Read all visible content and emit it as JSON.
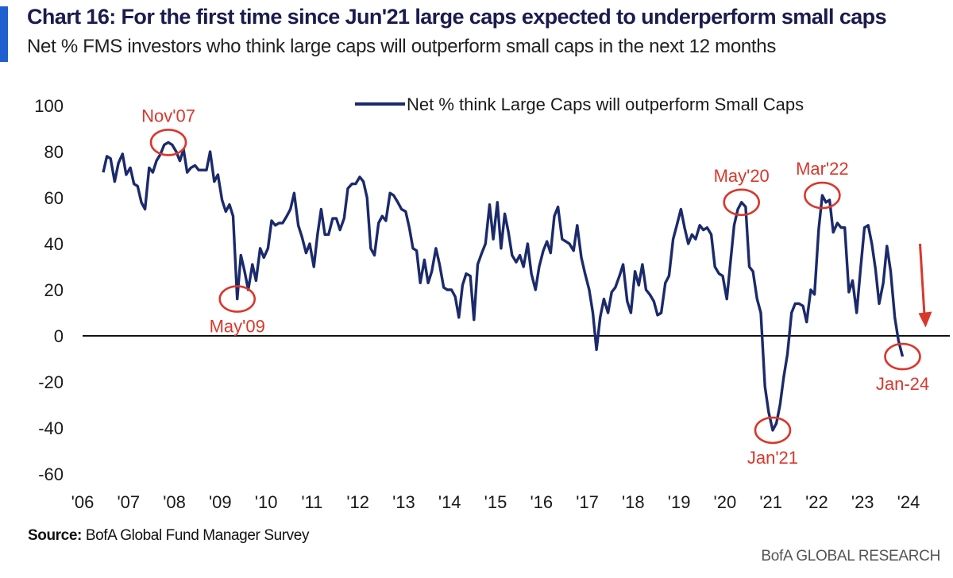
{
  "header": {
    "title": "Chart 16: For the first time since Jun'21 large caps expected to underperform small caps",
    "subtitle": "Net % FMS investors who think large caps will outperform small caps in the next 12 months"
  },
  "footer": {
    "source_label": "Source:",
    "source_text": "BofA Global Fund Manager Survey",
    "brand": "BofA GLOBAL RESEARCH"
  },
  "colors": {
    "line": "#1b2a6b",
    "annotation": "#d9372b",
    "accent": "#1f5fd0",
    "zero_line": "#111111"
  },
  "chart_data": {
    "type": "line",
    "title": "Chart 16: For the first time since Jun'21 large caps expected to underperform small caps",
    "subtitle": "Net % FMS investors who think large caps will outperform small caps in the next 12 months",
    "xlabel": "",
    "ylabel": "",
    "ylim": [
      -60,
      100
    ],
    "xlim": [
      2006.0,
      2024.9
    ],
    "yticks": [
      100,
      80,
      60,
      40,
      20,
      0,
      -20,
      -40,
      -60
    ],
    "xtick_values": [
      2006,
      2007,
      2008,
      2009,
      2010,
      2011,
      2012,
      2013,
      2014,
      2015,
      2016,
      2017,
      2018,
      2019,
      2020,
      2021,
      2022,
      2023,
      2024
    ],
    "xtick_labels": [
      "'06",
      "'07",
      "'08",
      "'09",
      "'10",
      "'11",
      "'12",
      "'13",
      "'14",
      "'15",
      "'16",
      "'17",
      "'18",
      "'19",
      "'20",
      "'21",
      "'22",
      "'23",
      "'24"
    ],
    "legend": {
      "position": "top-center",
      "entries": [
        "Net % think Large Caps will outperform Small Caps"
      ]
    },
    "grid": false,
    "series": [
      {
        "name": "Net % think Large Caps will outperform Small Caps",
        "points": [
          [
            2006.45,
            71
          ],
          [
            2006.53,
            78
          ],
          [
            2006.61,
            77
          ],
          [
            2006.7,
            67
          ],
          [
            2006.78,
            75
          ],
          [
            2006.87,
            79
          ],
          [
            2006.95,
            70
          ],
          [
            2007.04,
            73
          ],
          [
            2007.12,
            66
          ],
          [
            2007.2,
            65
          ],
          [
            2007.28,
            58
          ],
          [
            2007.36,
            55
          ],
          [
            2007.45,
            73
          ],
          [
            2007.53,
            71
          ],
          [
            2007.61,
            76
          ],
          [
            2007.7,
            79
          ],
          [
            2007.78,
            83
          ],
          [
            2007.87,
            84
          ],
          [
            2007.95,
            83
          ],
          [
            2008.04,
            80
          ],
          [
            2008.12,
            76
          ],
          [
            2008.2,
            81
          ],
          [
            2008.28,
            71
          ],
          [
            2008.36,
            73
          ],
          [
            2008.45,
            74
          ],
          [
            2008.53,
            72
          ],
          [
            2008.61,
            72
          ],
          [
            2008.7,
            72
          ],
          [
            2008.78,
            80
          ],
          [
            2008.87,
            67
          ],
          [
            2008.95,
            70
          ],
          [
            2009.04,
            59
          ],
          [
            2009.12,
            54
          ],
          [
            2009.2,
            57
          ],
          [
            2009.28,
            52
          ],
          [
            2009.37,
            16
          ],
          [
            2009.45,
            35
          ],
          [
            2009.53,
            28
          ],
          [
            2009.61,
            20
          ],
          [
            2009.7,
            31
          ],
          [
            2009.78,
            24
          ],
          [
            2009.87,
            38
          ],
          [
            2009.95,
            34
          ],
          [
            2010.04,
            38
          ],
          [
            2010.12,
            50
          ],
          [
            2010.2,
            48
          ],
          [
            2010.28,
            49
          ],
          [
            2010.36,
            49
          ],
          [
            2010.45,
            52
          ],
          [
            2010.53,
            55
          ],
          [
            2010.61,
            62
          ],
          [
            2010.7,
            48
          ],
          [
            2010.78,
            43
          ],
          [
            2010.87,
            36
          ],
          [
            2010.95,
            40
          ],
          [
            2011.04,
            30
          ],
          [
            2011.12,
            44
          ],
          [
            2011.2,
            55
          ],
          [
            2011.28,
            44
          ],
          [
            2011.36,
            44
          ],
          [
            2011.45,
            51
          ],
          [
            2011.53,
            51
          ],
          [
            2011.61,
            46
          ],
          [
            2011.7,
            51
          ],
          [
            2011.78,
            64
          ],
          [
            2011.87,
            66
          ],
          [
            2011.95,
            66
          ],
          [
            2012.04,
            69
          ],
          [
            2012.12,
            67
          ],
          [
            2012.2,
            60
          ],
          [
            2012.28,
            38
          ],
          [
            2012.36,
            35
          ],
          [
            2012.45,
            49
          ],
          [
            2012.53,
            52
          ],
          [
            2012.61,
            50
          ],
          [
            2012.7,
            62
          ],
          [
            2012.78,
            61
          ],
          [
            2012.87,
            58
          ],
          [
            2012.95,
            55
          ],
          [
            2013.04,
            54
          ],
          [
            2013.12,
            47
          ],
          [
            2013.2,
            38
          ],
          [
            2013.28,
            37
          ],
          [
            2013.36,
            23
          ],
          [
            2013.45,
            33
          ],
          [
            2013.53,
            23
          ],
          [
            2013.61,
            28
          ],
          [
            2013.7,
            38
          ],
          [
            2013.78,
            31
          ],
          [
            2013.87,
            21
          ],
          [
            2013.95,
            20
          ],
          [
            2014.04,
            20
          ],
          [
            2014.12,
            17
          ],
          [
            2014.2,
            8
          ],
          [
            2014.28,
            22
          ],
          [
            2014.36,
            27
          ],
          [
            2014.45,
            26
          ],
          [
            2014.53,
            7
          ],
          [
            2014.61,
            31
          ],
          [
            2014.7,
            36
          ],
          [
            2014.78,
            40
          ],
          [
            2014.87,
            57
          ],
          [
            2014.95,
            42
          ],
          [
            2015.04,
            58
          ],
          [
            2015.12,
            38
          ],
          [
            2015.2,
            53
          ],
          [
            2015.28,
            45
          ],
          [
            2015.36,
            35
          ],
          [
            2015.45,
            32
          ],
          [
            2015.53,
            35
          ],
          [
            2015.61,
            30
          ],
          [
            2015.7,
            40
          ],
          [
            2015.78,
            27
          ],
          [
            2015.87,
            20
          ],
          [
            2015.95,
            30
          ],
          [
            2016.04,
            37
          ],
          [
            2016.12,
            41
          ],
          [
            2016.2,
            36
          ],
          [
            2016.28,
            52
          ],
          [
            2016.36,
            56
          ],
          [
            2016.45,
            42
          ],
          [
            2016.53,
            41
          ],
          [
            2016.61,
            40
          ],
          [
            2016.7,
            37
          ],
          [
            2016.78,
            48
          ],
          [
            2016.87,
            34
          ],
          [
            2016.95,
            27
          ],
          [
            2017.04,
            20
          ],
          [
            2017.12,
            10
          ],
          [
            2017.2,
            -6
          ],
          [
            2017.28,
            8
          ],
          [
            2017.36,
            16
          ],
          [
            2017.45,
            10
          ],
          [
            2017.53,
            19
          ],
          [
            2017.61,
            21
          ],
          [
            2017.7,
            26
          ],
          [
            2017.78,
            31
          ],
          [
            2017.87,
            15
          ],
          [
            2017.95,
            10
          ],
          [
            2018.04,
            28
          ],
          [
            2018.12,
            22
          ],
          [
            2018.2,
            31
          ],
          [
            2018.28,
            20
          ],
          [
            2018.36,
            18
          ],
          [
            2018.45,
            15
          ],
          [
            2018.53,
            9
          ],
          [
            2018.61,
            10
          ],
          [
            2018.7,
            23
          ],
          [
            2018.78,
            26
          ],
          [
            2018.87,
            42
          ],
          [
            2018.95,
            48
          ],
          [
            2019.04,
            55
          ],
          [
            2019.12,
            47
          ],
          [
            2019.2,
            40
          ],
          [
            2019.28,
            44
          ],
          [
            2019.36,
            42
          ],
          [
            2019.45,
            48
          ],
          [
            2019.53,
            46
          ],
          [
            2019.61,
            47
          ],
          [
            2019.7,
            44
          ],
          [
            2019.78,
            30
          ],
          [
            2019.87,
            27
          ],
          [
            2019.95,
            26
          ],
          [
            2020.04,
            16
          ],
          [
            2020.12,
            32
          ],
          [
            2020.2,
            48
          ],
          [
            2020.28,
            55
          ],
          [
            2020.36,
            58
          ],
          [
            2020.45,
            56
          ],
          [
            2020.53,
            30
          ],
          [
            2020.61,
            28
          ],
          [
            2020.7,
            16
          ],
          [
            2020.78,
            10
          ],
          [
            2020.87,
            -22
          ],
          [
            2020.95,
            -33
          ],
          [
            2021.04,
            -41
          ],
          [
            2021.12,
            -38
          ],
          [
            2021.2,
            -30
          ],
          [
            2021.28,
            -18
          ],
          [
            2021.36,
            -8
          ],
          [
            2021.45,
            10
          ],
          [
            2021.53,
            14
          ],
          [
            2021.61,
            14
          ],
          [
            2021.7,
            13
          ],
          [
            2021.78,
            6
          ],
          [
            2021.87,
            20
          ],
          [
            2021.95,
            18
          ],
          [
            2022.04,
            46
          ],
          [
            2022.12,
            61
          ],
          [
            2022.2,
            58
          ],
          [
            2022.28,
            59
          ],
          [
            2022.36,
            45
          ],
          [
            2022.45,
            49
          ],
          [
            2022.53,
            47
          ],
          [
            2022.61,
            47
          ],
          [
            2022.7,
            19
          ],
          [
            2022.78,
            24
          ],
          [
            2022.87,
            10
          ],
          [
            2022.95,
            28
          ],
          [
            2023.04,
            47
          ],
          [
            2023.12,
            48
          ],
          [
            2023.2,
            40
          ],
          [
            2023.28,
            29
          ],
          [
            2023.36,
            14
          ],
          [
            2023.45,
            23
          ],
          [
            2023.53,
            39
          ],
          [
            2023.61,
            28
          ],
          [
            2023.7,
            8
          ],
          [
            2023.78,
            -2
          ],
          [
            2023.87,
            -9
          ]
        ]
      }
    ],
    "annotations": [
      {
        "label": "Nov'07",
        "x": 2007.87,
        "y": 84,
        "label_side": "above"
      },
      {
        "label": "May'09",
        "x": 2009.37,
        "y": 16,
        "label_side": "below"
      },
      {
        "label": "May'20",
        "x": 2020.36,
        "y": 58,
        "label_side": "above"
      },
      {
        "label": "Jan'21",
        "x": 2021.04,
        "y": -41,
        "label_side": "below"
      },
      {
        "label": "Mar'22",
        "x": 2022.12,
        "y": 61,
        "label_side": "above"
      },
      {
        "label": "Jan-24",
        "x": 2023.87,
        "y": -9,
        "label_side": "below"
      }
    ],
    "trend_arrow": {
      "direction": "down",
      "color": "#d9372b"
    }
  }
}
